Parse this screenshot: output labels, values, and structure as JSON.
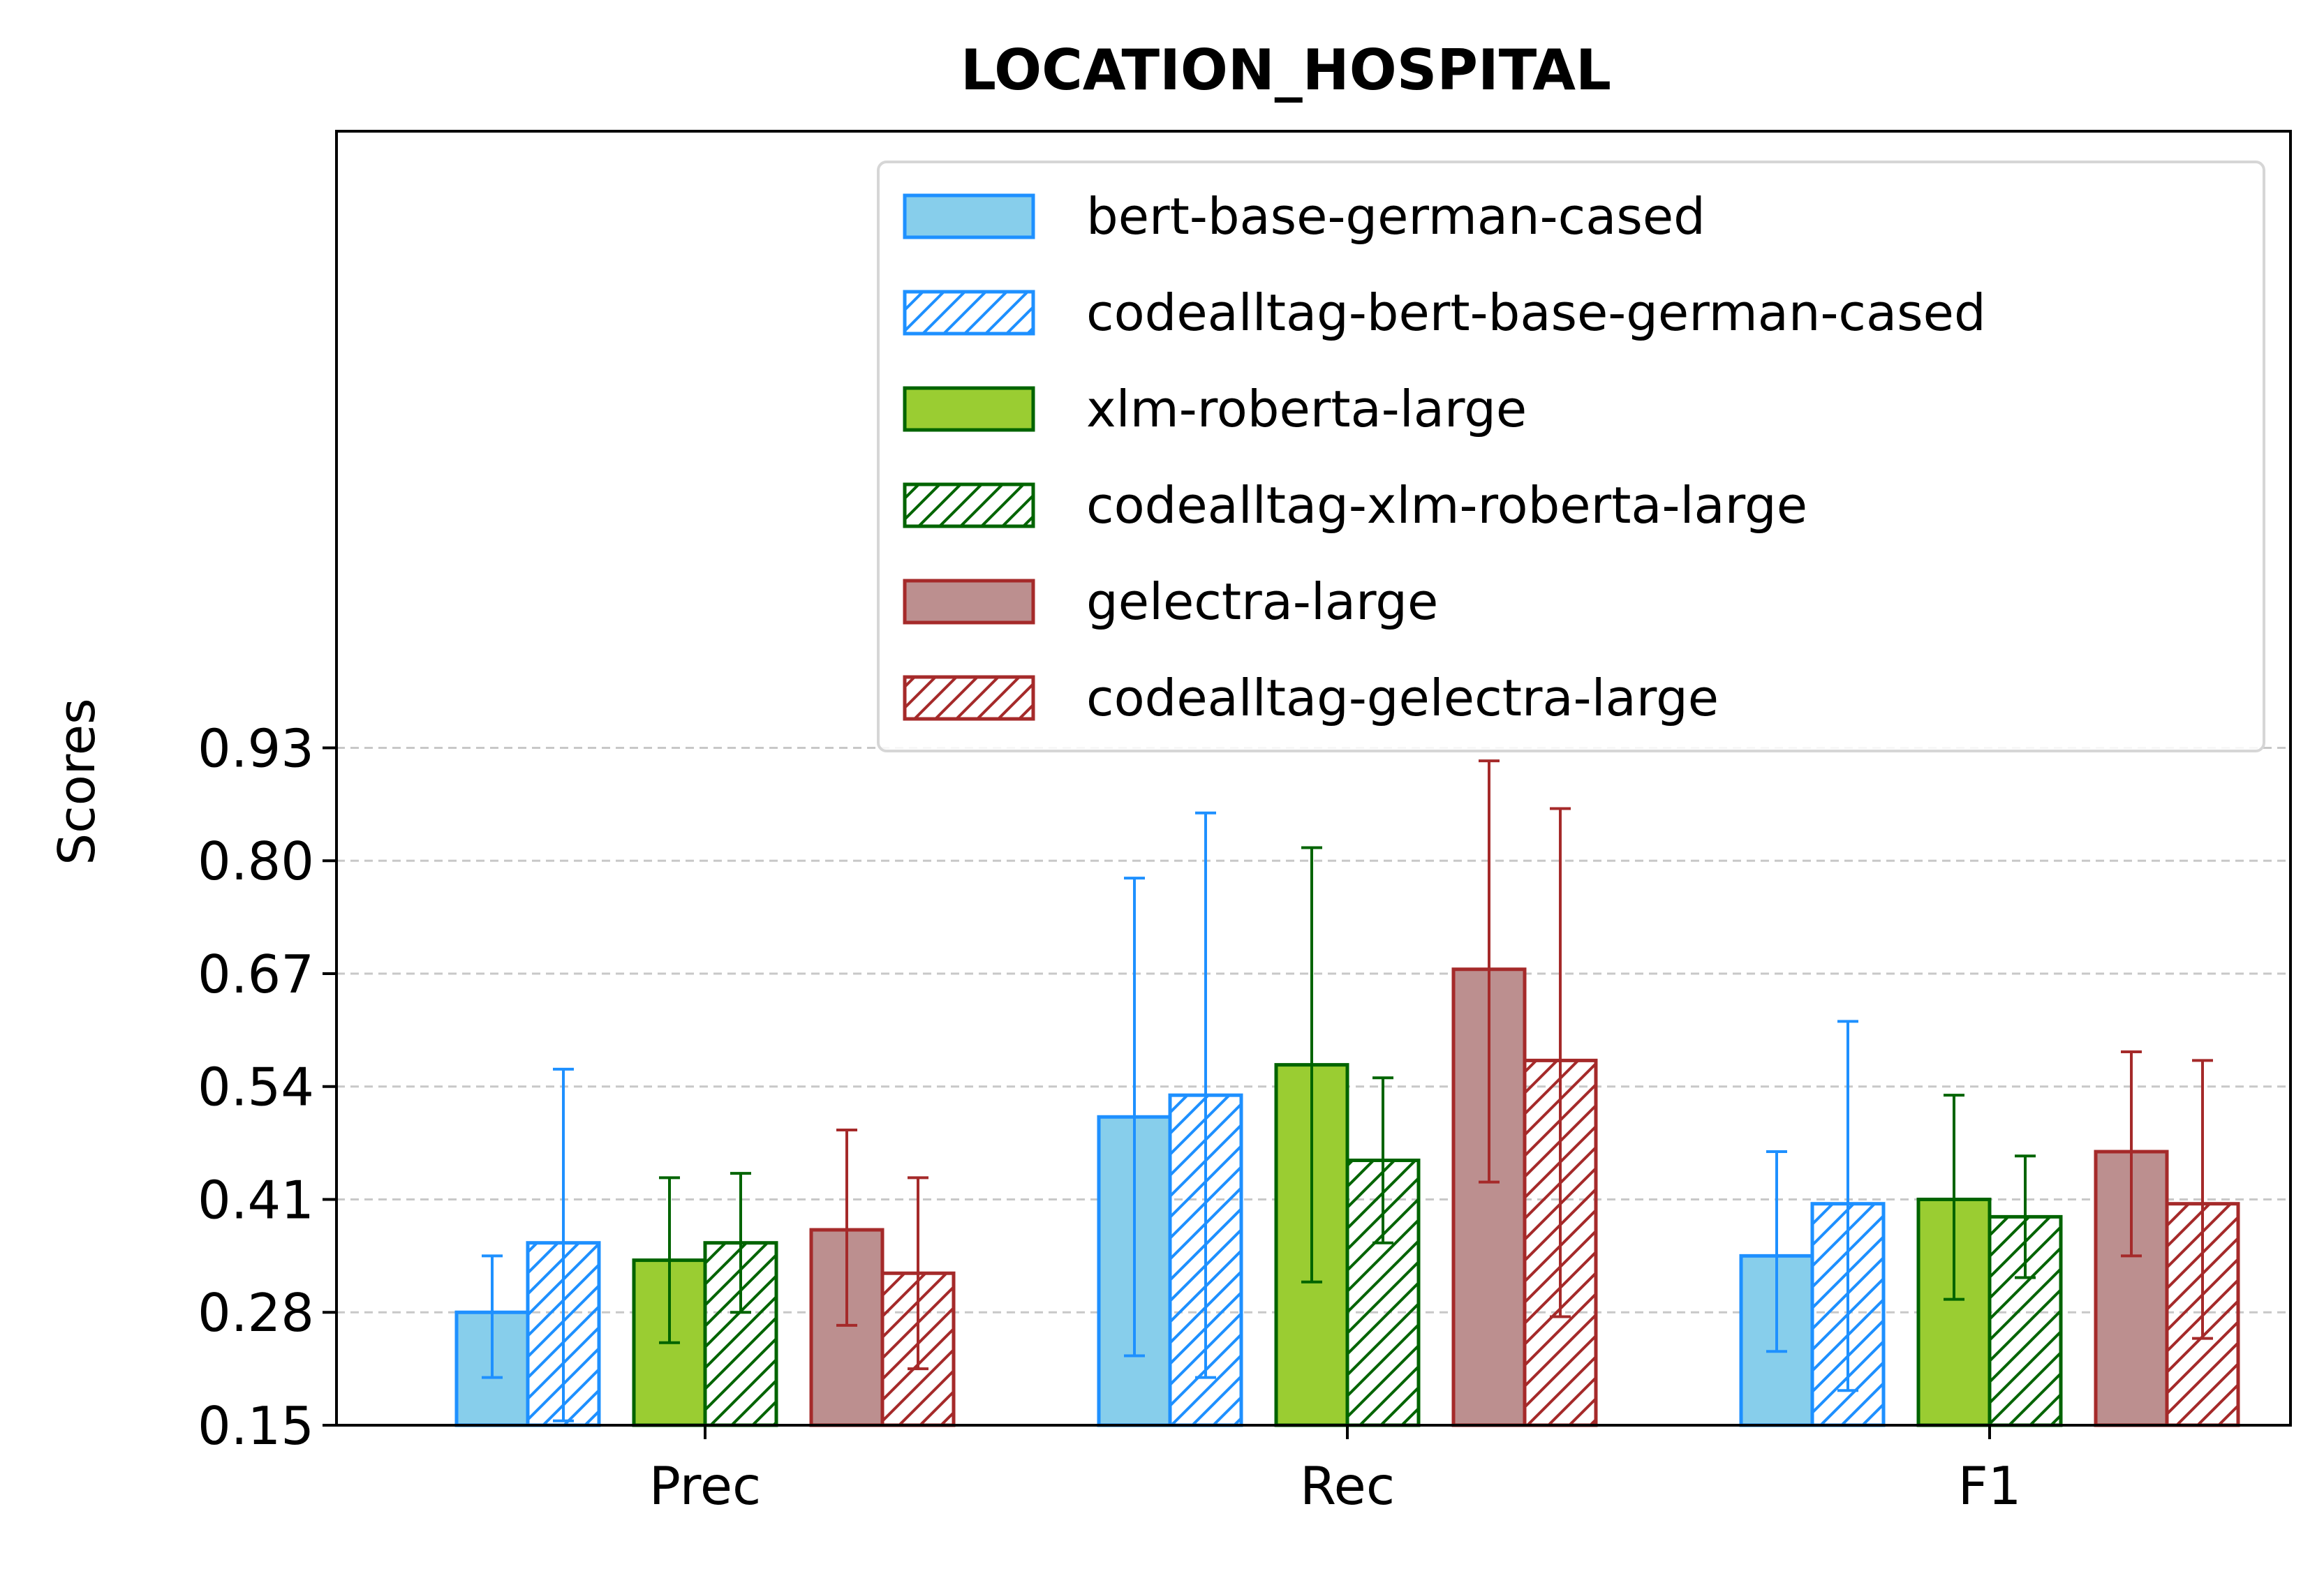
{
  "chart_data": {
    "type": "bar",
    "title": "LOCATION_HOSPITAL",
    "xlabel": "",
    "ylabel": "Scores",
    "categories": [
      "Prec",
      "Rec",
      "F1"
    ],
    "yticks": [
      "0.15",
      "0.28",
      "0.41",
      "0.54",
      "0.67",
      "0.80",
      "0.93"
    ],
    "ylim": [
      0.15,
      1.64
    ],
    "grid": "y-dashed",
    "legend_position": "top-right",
    "series": [
      {
        "name": "bert-base-german-cased",
        "color": "#87ceeb",
        "edge": "#1e90ff",
        "hatched": false,
        "values": [
          0.28,
          0.505,
          0.345
        ],
        "err_low": [
          0.205,
          0.23,
          0.235
        ],
        "err_high": [
          0.345,
          0.78,
          0.465
        ]
      },
      {
        "name": "codealltag-bert-base-german-cased",
        "color": "#ffffff",
        "edge": "#1e90ff",
        "hatched": true,
        "values": [
          0.36,
          0.53,
          0.405
        ],
        "err_low": [
          0.155,
          0.205,
          0.19
        ],
        "err_high": [
          0.56,
          0.855,
          0.615
        ]
      },
      {
        "name": "xlm-roberta-large",
        "color": "#9acd32",
        "edge": "#006400",
        "hatched": false,
        "values": [
          0.34,
          0.565,
          0.41
        ],
        "err_low": [
          0.245,
          0.315,
          0.295
        ],
        "err_high": [
          0.435,
          0.815,
          0.53
        ]
      },
      {
        "name": "codealltag-xlm-roberta-large",
        "color": "#ffffff",
        "edge": "#006400",
        "hatched": true,
        "values": [
          0.36,
          0.455,
          0.39
        ],
        "err_low": [
          0.28,
          0.36,
          0.32
        ],
        "err_high": [
          0.44,
          0.55,
          0.46
        ]
      },
      {
        "name": "gelectra-large",
        "color": "#bc8f8f",
        "edge": "#a52a2a",
        "hatched": false,
        "values": [
          0.375,
          0.675,
          0.465
        ],
        "err_low": [
          0.265,
          0.43,
          0.345
        ],
        "err_high": [
          0.49,
          0.915,
          0.58
        ]
      },
      {
        "name": "codealltag-gelectra-large",
        "color": "#ffffff",
        "edge": "#a52a2a",
        "hatched": true,
        "values": [
          0.325,
          0.57,
          0.405
        ],
        "err_low": [
          0.215,
          0.275,
          0.25
        ],
        "err_high": [
          0.435,
          0.86,
          0.57
        ]
      }
    ]
  }
}
